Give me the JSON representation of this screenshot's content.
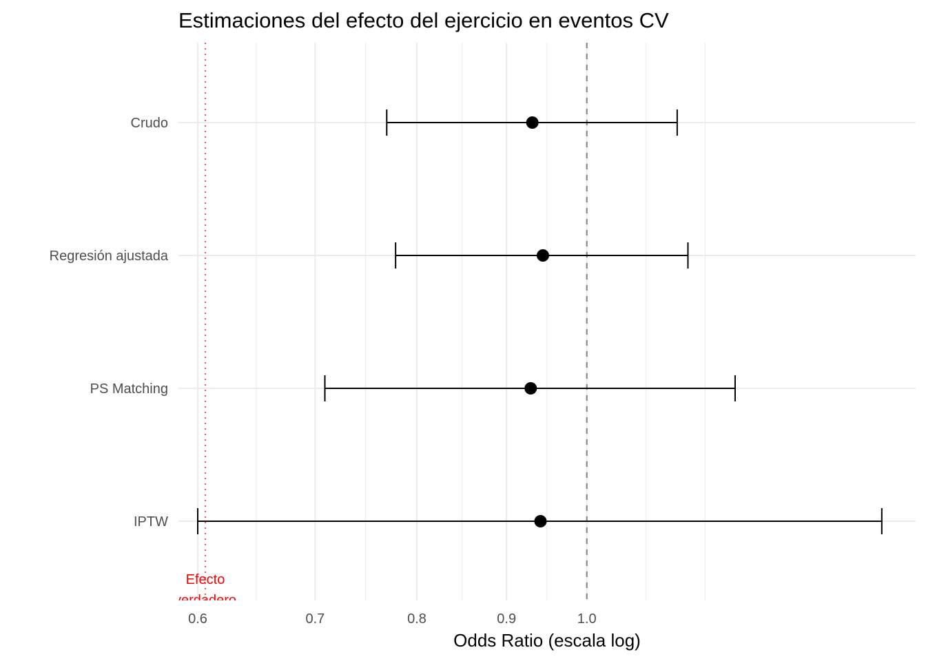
{
  "chart_data": {
    "type": "forest",
    "title": "Estimaciones del efecto del ejercicio en eventos CV",
    "xlabel": "Odds Ratio (escala log)",
    "ylabel": "",
    "x_scale": "log",
    "xlim": [
      0.585,
      1.54
    ],
    "x_ticks": [
      {
        "value": 0.6,
        "label": "0.6"
      },
      {
        "value": 0.7,
        "label": "0.7"
      },
      {
        "value": 0.8,
        "label": "0.8"
      },
      {
        "value": 0.9,
        "label": "0.9"
      },
      {
        "value": 1.0,
        "label": "1.0"
      }
    ],
    "x_minor_gridlines": [
      0.648,
      0.748,
      0.849,
      0.949,
      1.081,
      1.168
    ],
    "grid": true,
    "categories": [
      "Crudo",
      "Regresión ajustada",
      "PS Matching",
      "IPTW"
    ],
    "series": [
      {
        "name": "Crudo",
        "estimate": 0.931,
        "ci_low": 0.769,
        "ci_high": 1.126
      },
      {
        "name": "Regresión ajustada",
        "estimate": 0.944,
        "ci_low": 0.778,
        "ci_high": 1.142
      },
      {
        "name": "PS Matching",
        "estimate": 0.929,
        "ci_low": 0.709,
        "ci_high": 1.215
      },
      {
        "name": "IPTW",
        "estimate": 0.941,
        "ci_low": 0.6,
        "ci_high": 1.473
      }
    ],
    "reference_lines": [
      {
        "name": "null-effect",
        "value": 1.0,
        "style": "dashed",
        "color": "#808080"
      },
      {
        "name": "true-effect",
        "value": 0.606,
        "style": "dotted",
        "color": "#ff0000"
      }
    ],
    "annotations": [
      {
        "text_line1": "Efecto",
        "text_line2": "verdadero",
        "x": 0.606,
        "color": "#ff0000"
      }
    ],
    "colors": {
      "point": "#000000",
      "errorbar": "#000000",
      "grid": "#ebebeb",
      "tick_text": "#4d4d4d"
    }
  }
}
